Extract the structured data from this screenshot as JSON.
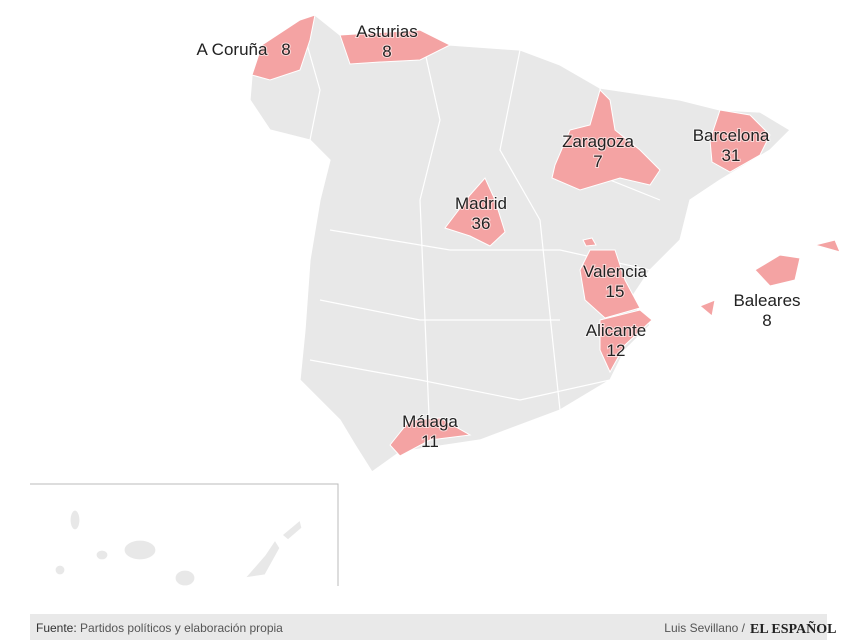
{
  "title": null,
  "regions": [
    {
      "name": "A Coruña",
      "value": 8
    },
    {
      "name": "Asturias",
      "value": 8
    },
    {
      "name": "Zaragoza",
      "value": 7
    },
    {
      "name": "Barcelona",
      "value": 31
    },
    {
      "name": "Madrid",
      "value": 36
    },
    {
      "name": "Valencia",
      "value": 15
    },
    {
      "name": "Baleares",
      "value": 8
    },
    {
      "name": "Alicante",
      "value": 12
    },
    {
      "name": "Málaga",
      "value": 11
    }
  ],
  "footer": {
    "source_label": "Fuente:",
    "source": "Partidos políticos y elaboración propia",
    "author": "Luis Sevillano /",
    "brand": "EL ESPAÑOL"
  }
}
